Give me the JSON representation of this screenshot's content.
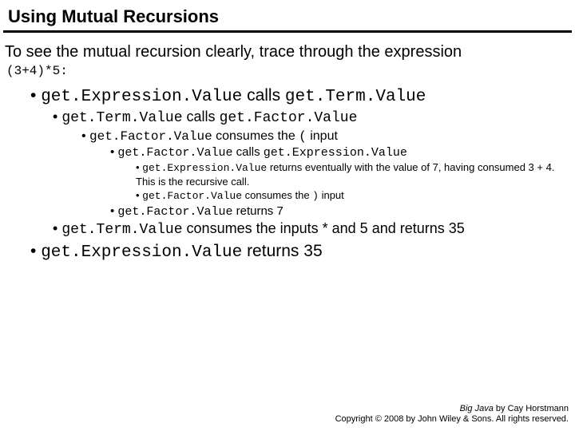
{
  "colors": {
    "background": "#ffffff",
    "text": "#000000",
    "rule": "#000000"
  },
  "title": "Using Mutual Recursions",
  "intro": "To see the mutual recursion clearly, trace through the expression",
  "expr": "(3+4)*5:",
  "lines": {
    "l1a": "get.Expression.Value",
    "l1b": " calls ",
    "l1c": "get.Term.Value",
    "l2a": "get.Term.Value",
    "l2b": " calls ",
    "l2c": "get.Factor.Value",
    "l3a": "get.Factor.Value",
    "l3b": " consumes the ",
    "l3c": "(",
    "l3d": " input",
    "l4a": "get.Factor.Value",
    "l4b": " calls ",
    "l4c": "get.Expression.Value",
    "l5a": "get.Expression.Value",
    "l5b": "  returns  eventually with the value of 7, having consumed 3 + 4. This is the recursive call.",
    "l6a": "get.Factor.Value",
    "l6b": "  consumes the ",
    "l6c": ")",
    "l6d": "  input",
    "l7a": "get.Factor.Value",
    "l7b": " returns 7",
    "l8a": "get.Term.Value",
    "l8b": "  consumes the inputs * and 5 and returns 35",
    "l9a": "get.Expression.Value",
    "l9b": " returns 35"
  },
  "footer": {
    "book": "Big Java",
    "author": " by Cay Horstmann",
    "copyright": "Copyright © 2008 by John Wiley & Sons.  All rights reserved."
  }
}
